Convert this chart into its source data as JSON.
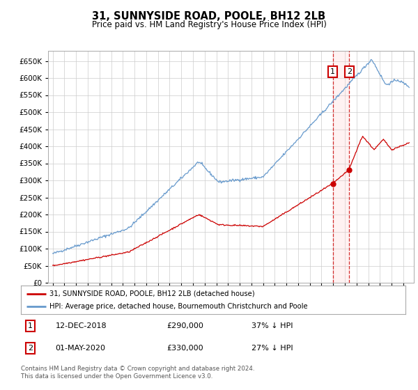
{
  "title": "31, SUNNYSIDE ROAD, POOLE, BH12 2LB",
  "subtitle": "Price paid vs. HM Land Registry's House Price Index (HPI)",
  "property_label": "31, SUNNYSIDE ROAD, POOLE, BH12 2LB (detached house)",
  "hpi_label": "HPI: Average price, detached house, Bournemouth Christchurch and Poole",
  "sale1_date": "12-DEC-2018",
  "sale1_price": 290000,
  "sale1_pct": "37% ↓ HPI",
  "sale2_date": "01-MAY-2020",
  "sale2_price": 330000,
  "sale2_pct": "27% ↓ HPI",
  "footer": "Contains HM Land Registry data © Crown copyright and database right 2024.\nThis data is licensed under the Open Government Licence v3.0.",
  "property_color": "#cc0000",
  "hpi_color": "#6699cc",
  "vline_color": "#cc0000",
  "background_color": "#ffffff",
  "grid_color": "#cccccc",
  "ylim": [
    0,
    680000
  ],
  "yticks": [
    0,
    50000,
    100000,
    150000,
    200000,
    250000,
    300000,
    350000,
    400000,
    450000,
    500000,
    550000,
    600000,
    650000
  ]
}
